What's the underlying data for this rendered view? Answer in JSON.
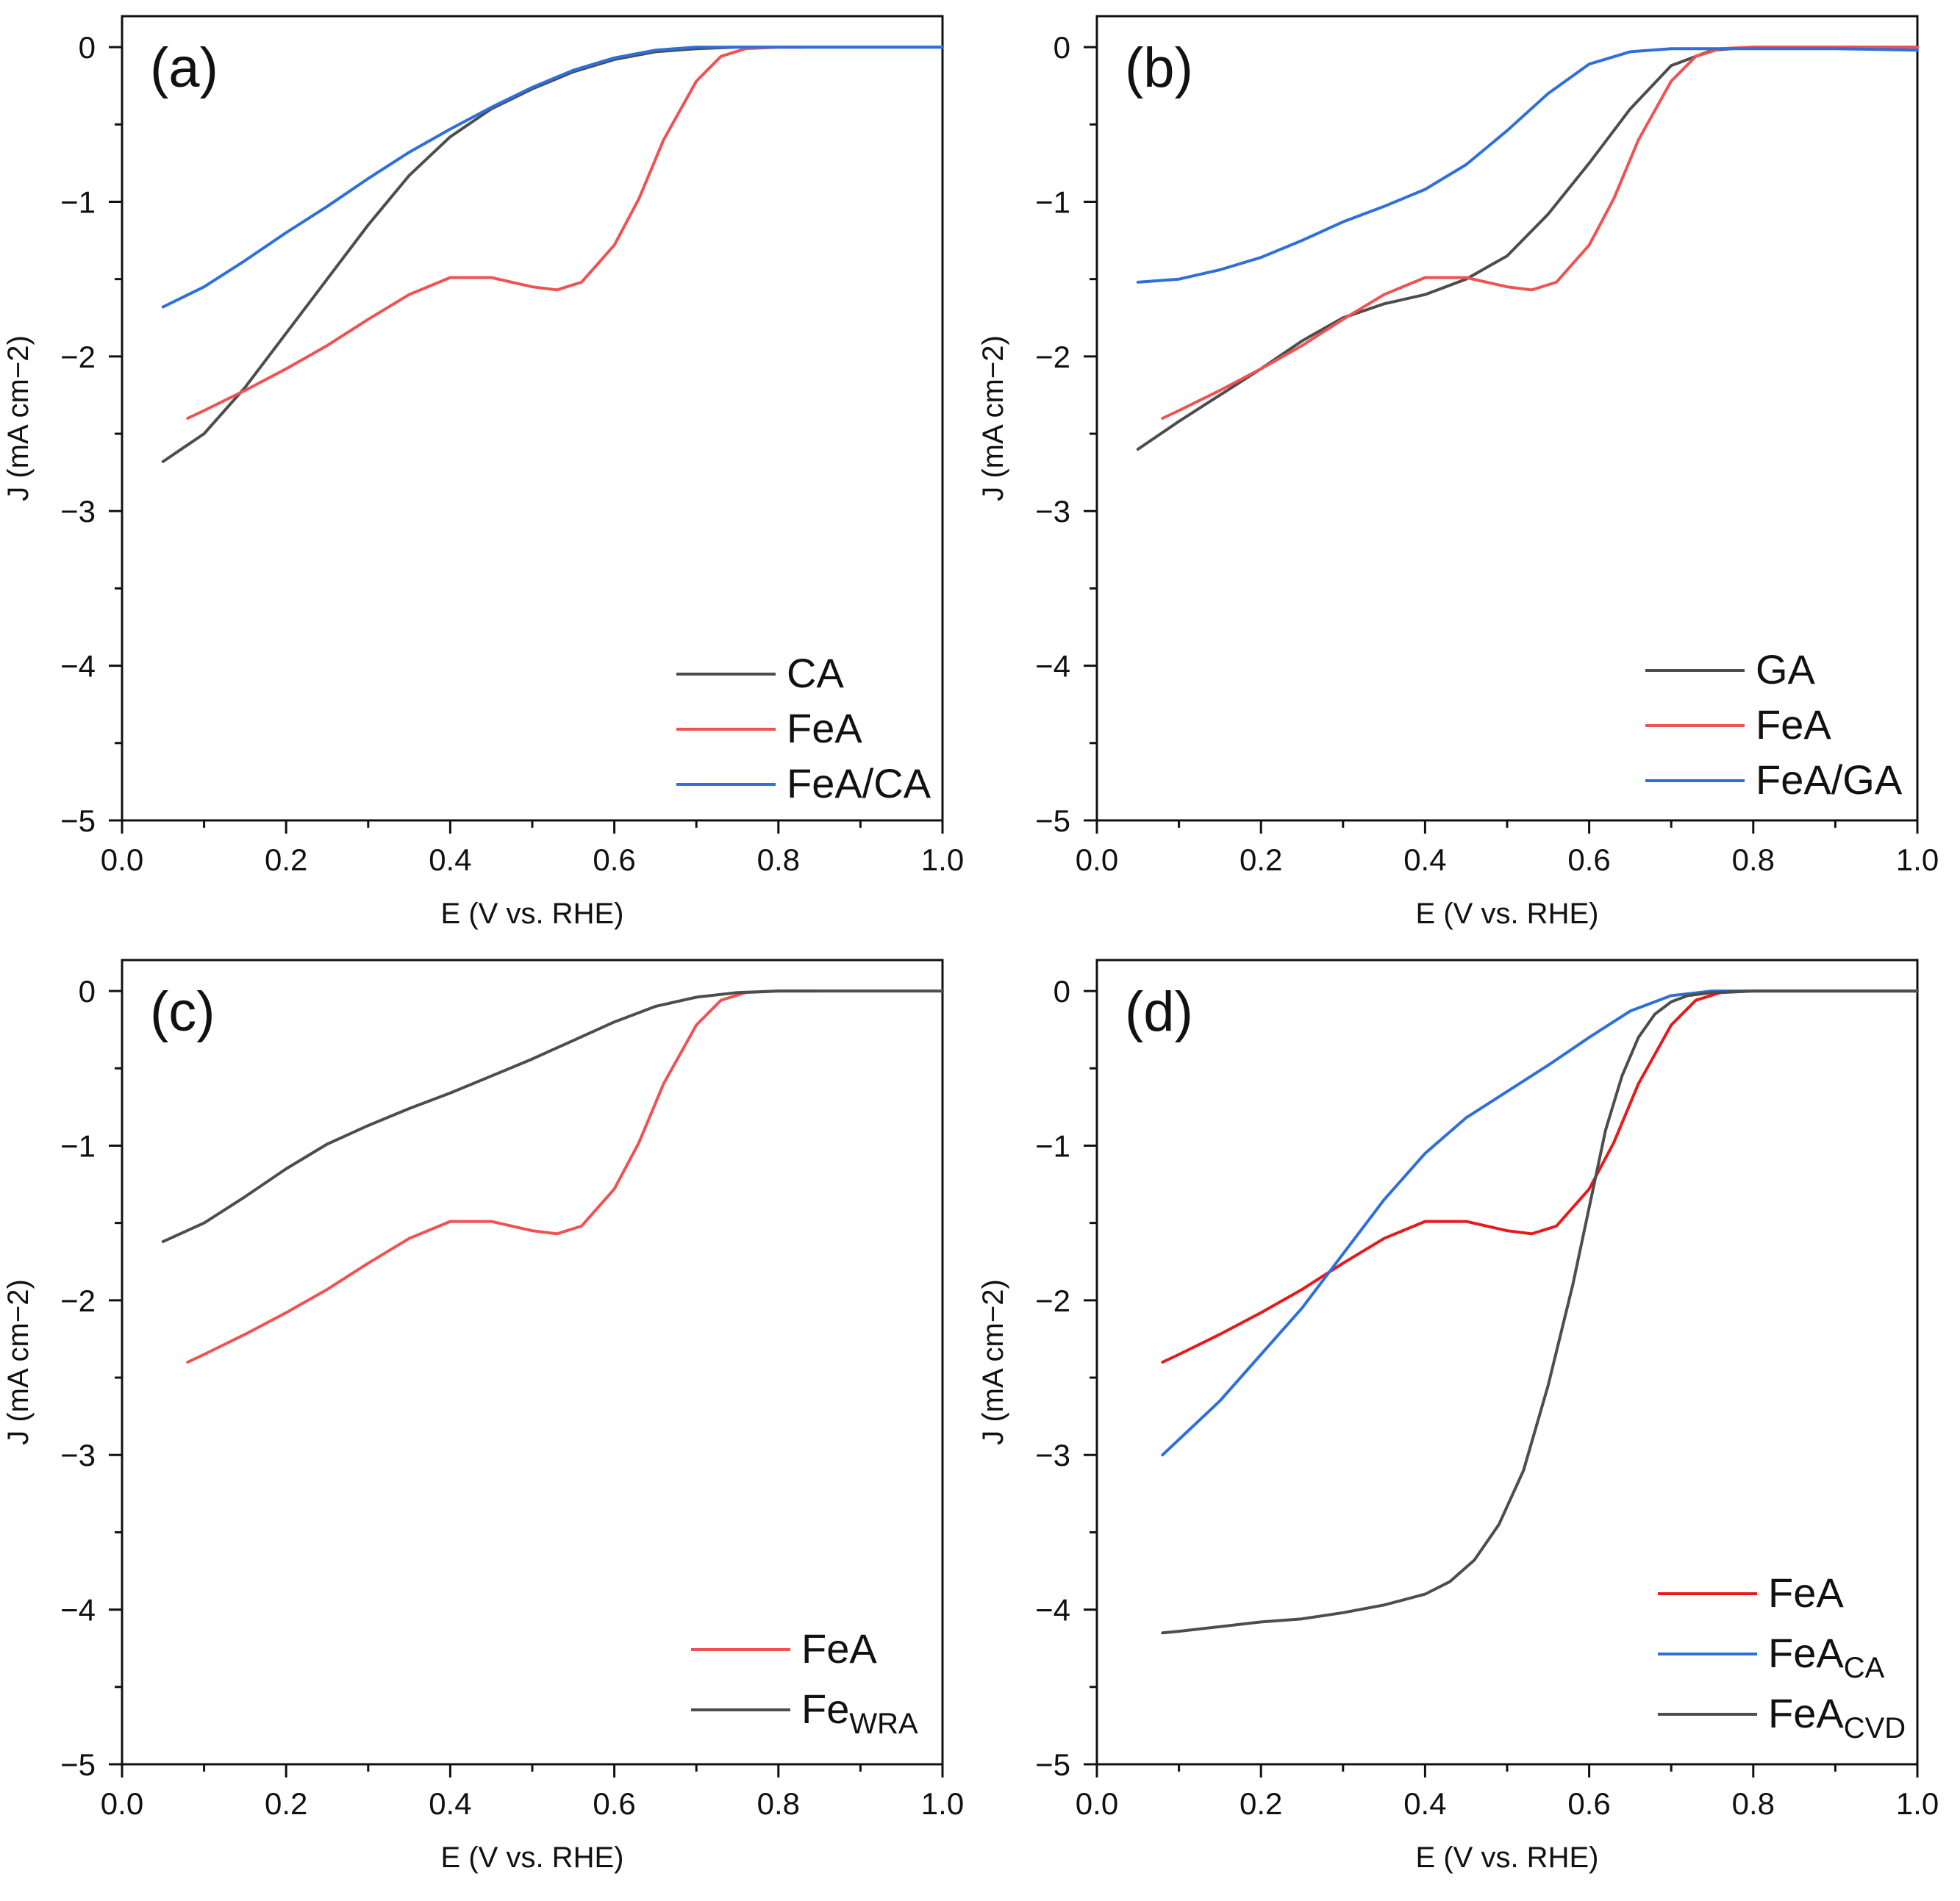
{
  "chart_data": [
    {
      "type": "line",
      "panel_label": "(a)",
      "xlabel": "E (V vs. RHE)",
      "ylabel": "J (mA cm−2)",
      "xlim": [
        0.0,
        1.0
      ],
      "ylim": [
        -5,
        0.2
      ],
      "xticks": [
        "0.0",
        "0.2",
        "0.4",
        "0.6",
        "0.8",
        "1.0"
      ],
      "yticks": [
        "0",
        "−1",
        "−2",
        "−3",
        "−4",
        "−5"
      ],
      "legend_position": "bottom-right",
      "series": [
        {
          "name": "CA",
          "sub": "",
          "color": "#4d4d4d",
          "x": [
            0.05,
            0.1,
            0.15,
            0.2,
            0.25,
            0.3,
            0.35,
            0.4,
            0.45,
            0.5,
            0.55,
            0.6,
            0.65,
            0.7,
            0.75,
            0.8,
            0.9,
            1.0
          ],
          "y": [
            -2.68,
            -2.5,
            -2.2,
            -1.85,
            -1.5,
            -1.15,
            -0.83,
            -0.58,
            -0.4,
            -0.27,
            -0.16,
            -0.08,
            -0.03,
            -0.01,
            0,
            0,
            0,
            0
          ]
        },
        {
          "name": "FeA",
          "sub": "",
          "color": "#f05252",
          "x": [
            0.08,
            0.1,
            0.15,
            0.2,
            0.25,
            0.3,
            0.35,
            0.4,
            0.45,
            0.5,
            0.53,
            0.56,
            0.6,
            0.63,
            0.66,
            0.7,
            0.73,
            0.76,
            0.8,
            0.83
          ],
          "y": [
            -2.4,
            -2.35,
            -2.22,
            -2.08,
            -1.93,
            -1.76,
            -1.6,
            -1.49,
            -1.49,
            -1.55,
            -1.57,
            -1.52,
            -1.28,
            -0.98,
            -0.6,
            -0.22,
            -0.06,
            -0.01,
            0,
            0
          ]
        },
        {
          "name": "FeA/CA",
          "sub": "",
          "color": "#2e6fdb",
          "x": [
            0.05,
            0.1,
            0.15,
            0.2,
            0.25,
            0.3,
            0.35,
            0.4,
            0.45,
            0.5,
            0.55,
            0.6,
            0.65,
            0.7,
            0.8,
            0.9,
            1.0
          ],
          "y": [
            -1.68,
            -1.55,
            -1.38,
            -1.2,
            -1.03,
            -0.85,
            -0.68,
            -0.53,
            -0.39,
            -0.26,
            -0.15,
            -0.07,
            -0.02,
            0,
            0,
            0,
            0
          ]
        }
      ]
    },
    {
      "type": "line",
      "panel_label": "(b)",
      "xlabel": "E (V vs. RHE)",
      "ylabel": "J (mA cm−2)",
      "xlim": [
        0.0,
        1.0
      ],
      "ylim": [
        -5,
        0.2
      ],
      "xticks": [
        "0.0",
        "0.2",
        "0.4",
        "0.6",
        "0.8",
        "1.0"
      ],
      "yticks": [
        "0",
        "−1",
        "−2",
        "−3",
        "−4",
        "−5"
      ],
      "legend_position": "bottom-right",
      "series": [
        {
          "name": "GA",
          "sub": "",
          "color": "#4d4d4d",
          "x": [
            0.05,
            0.1,
            0.15,
            0.2,
            0.25,
            0.3,
            0.35,
            0.4,
            0.45,
            0.5,
            0.55,
            0.6,
            0.65,
            0.7,
            0.75,
            0.8,
            0.9,
            1.0
          ],
          "y": [
            -2.6,
            -2.42,
            -2.25,
            -2.08,
            -1.9,
            -1.75,
            -1.66,
            -1.6,
            -1.5,
            -1.35,
            -1.08,
            -0.75,
            -0.4,
            -0.12,
            -0.02,
            0,
            0,
            0
          ]
        },
        {
          "name": "FeA",
          "sub": "",
          "color": "#f05252",
          "x": [
            0.08,
            0.1,
            0.15,
            0.2,
            0.25,
            0.3,
            0.35,
            0.4,
            0.45,
            0.5,
            0.53,
            0.56,
            0.6,
            0.63,
            0.66,
            0.7,
            0.73,
            0.76,
            0.8,
            0.85,
            0.9,
            1.0
          ],
          "y": [
            -2.4,
            -2.35,
            -2.22,
            -2.08,
            -1.93,
            -1.76,
            -1.6,
            -1.49,
            -1.49,
            -1.55,
            -1.57,
            -1.52,
            -1.28,
            -0.98,
            -0.6,
            -0.22,
            -0.06,
            -0.01,
            0,
            0,
            0,
            0
          ]
        },
        {
          "name": "FeA/GA",
          "sub": "",
          "color": "#2e6fdb",
          "x": [
            0.05,
            0.1,
            0.15,
            0.2,
            0.25,
            0.3,
            0.35,
            0.4,
            0.45,
            0.5,
            0.55,
            0.6,
            0.65,
            0.7,
            0.75,
            0.8,
            0.9,
            1.0
          ],
          "y": [
            -1.52,
            -1.5,
            -1.44,
            -1.36,
            -1.25,
            -1.13,
            -1.03,
            -0.92,
            -0.76,
            -0.54,
            -0.3,
            -0.11,
            -0.03,
            -0.01,
            -0.01,
            -0.01,
            -0.01,
            -0.02
          ]
        }
      ]
    },
    {
      "type": "line",
      "panel_label": "(c)",
      "xlabel": "E (V vs. RHE)",
      "ylabel": "J (mA cm−2)",
      "xlim": [
        0.0,
        1.0
      ],
      "ylim": [
        -5,
        0.2
      ],
      "xticks": [
        "0.0",
        "0.2",
        "0.4",
        "0.6",
        "0.8",
        "1.0"
      ],
      "yticks": [
        "0",
        "−1",
        "−2",
        "−3",
        "−4",
        "−5"
      ],
      "legend_position": "bottom-right",
      "series": [
        {
          "name": "FeA",
          "sub": "",
          "color": "#f05252",
          "x": [
            0.08,
            0.1,
            0.15,
            0.2,
            0.25,
            0.3,
            0.35,
            0.4,
            0.45,
            0.5,
            0.53,
            0.56,
            0.6,
            0.63,
            0.66,
            0.7,
            0.73,
            0.76,
            0.8,
            0.85
          ],
          "y": [
            -2.4,
            -2.35,
            -2.22,
            -2.08,
            -1.93,
            -1.76,
            -1.6,
            -1.49,
            -1.49,
            -1.55,
            -1.57,
            -1.52,
            -1.28,
            -0.98,
            -0.6,
            -0.22,
            -0.06,
            -0.01,
            0,
            0
          ]
        },
        {
          "name": "Fe",
          "sub": "WRA",
          "color": "#4d4d4d",
          "x": [
            0.05,
            0.1,
            0.15,
            0.2,
            0.25,
            0.3,
            0.35,
            0.4,
            0.45,
            0.5,
            0.55,
            0.6,
            0.65,
            0.7,
            0.75,
            0.8,
            0.9,
            1.0
          ],
          "y": [
            -1.62,
            -1.5,
            -1.33,
            -1.15,
            -0.99,
            -0.87,
            -0.76,
            -0.66,
            -0.55,
            -0.44,
            -0.32,
            -0.2,
            -0.1,
            -0.04,
            -0.01,
            0,
            0,
            0
          ]
        }
      ]
    },
    {
      "type": "line",
      "panel_label": "(d)",
      "xlabel": "E (V vs. RHE)",
      "ylabel": "J (mA cm−2)",
      "xlim": [
        0.0,
        1.0
      ],
      "ylim": [
        -5,
        0.2
      ],
      "xticks": [
        "0.0",
        "0.2",
        "0.4",
        "0.6",
        "0.8",
        "1.0"
      ],
      "yticks": [
        "0",
        "−1",
        "−2",
        "−3",
        "−4",
        "−5"
      ],
      "legend_position": "bottom-right",
      "series": [
        {
          "name": "FeA",
          "sub": "",
          "color": "#e8191b",
          "x": [
            0.08,
            0.1,
            0.15,
            0.2,
            0.25,
            0.3,
            0.35,
            0.4,
            0.45,
            0.5,
            0.53,
            0.56,
            0.6,
            0.63,
            0.66,
            0.7,
            0.73,
            0.76,
            0.8,
            0.85,
            0.9,
            1.0
          ],
          "y": [
            -2.4,
            -2.35,
            -2.22,
            -2.08,
            -1.93,
            -1.76,
            -1.6,
            -1.49,
            -1.49,
            -1.55,
            -1.57,
            -1.52,
            -1.28,
            -0.98,
            -0.6,
            -0.22,
            -0.06,
            -0.01,
            0,
            0,
            0,
            0
          ]
        },
        {
          "name": "FeA",
          "sub": "CA",
          "color": "#2e6fdb",
          "x": [
            0.08,
            0.1,
            0.15,
            0.2,
            0.25,
            0.3,
            0.35,
            0.4,
            0.45,
            0.5,
            0.55,
            0.6,
            0.65,
            0.7,
            0.75,
            0.8,
            0.9,
            1.0
          ],
          "y": [
            -3.0,
            -2.9,
            -2.65,
            -2.35,
            -2.05,
            -1.7,
            -1.35,
            -1.05,
            -0.82,
            -0.65,
            -0.48,
            -0.3,
            -0.13,
            -0.03,
            0,
            0,
            0,
            0
          ]
        },
        {
          "name": "FeA",
          "sub": "CVD",
          "color": "#4d4d4d",
          "x": [
            0.08,
            0.1,
            0.15,
            0.2,
            0.25,
            0.3,
            0.35,
            0.4,
            0.43,
            0.46,
            0.49,
            0.52,
            0.55,
            0.58,
            0.6,
            0.62,
            0.64,
            0.66,
            0.68,
            0.7,
            0.72,
            0.75,
            0.8,
            0.9,
            1.0
          ],
          "y": [
            -4.15,
            -4.14,
            -4.11,
            -4.08,
            -4.06,
            -4.02,
            -3.97,
            -3.9,
            -3.82,
            -3.68,
            -3.45,
            -3.1,
            -2.55,
            -1.9,
            -1.4,
            -0.9,
            -0.55,
            -0.3,
            -0.15,
            -0.07,
            -0.03,
            -0.01,
            0,
            0,
            0
          ]
        }
      ]
    }
  ]
}
